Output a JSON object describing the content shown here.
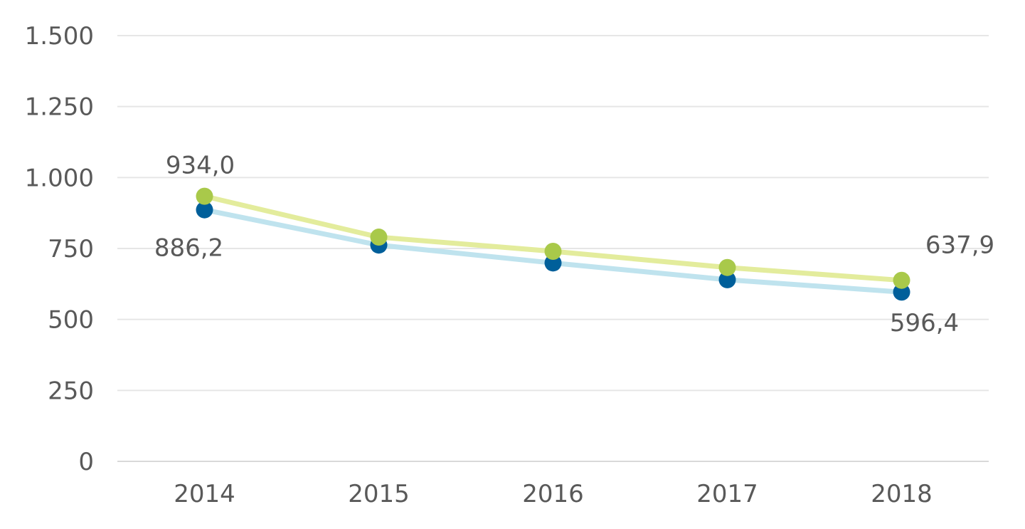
{
  "chart_data": {
    "type": "line",
    "title": "",
    "xlabel": "",
    "ylabel": "",
    "categories": [
      "2014",
      "2015",
      "2016",
      "2017",
      "2018"
    ],
    "ylim": [
      0,
      1500
    ],
    "yticks": [
      0,
      250,
      500,
      750,
      1000,
      1250,
      1500
    ],
    "ytick_labels": [
      "0",
      "250",
      "500",
      "750",
      "1.000",
      "1.250",
      "1.500"
    ],
    "grid": true,
    "legend": "none",
    "series": [
      {
        "values": [
          934.0,
          790,
          740,
          683,
          637.9
        ],
        "line_color": "#e3ec9c",
        "marker_color": "#a9c94a",
        "data_labels": [
          {
            "index": 0,
            "text": "934,0",
            "position": "above"
          },
          {
            "index": 4,
            "text": "637,9",
            "position": "above-right"
          }
        ]
      },
      {
        "values": [
          886.2,
          762,
          699,
          640,
          596.4
        ],
        "line_color": "#bfe3ee",
        "marker_color": "#005f9a",
        "data_labels": [
          {
            "index": 0,
            "text": "886,2",
            "position": "below-left"
          },
          {
            "index": 4,
            "text": "596,4",
            "position": "below"
          }
        ]
      }
    ]
  }
}
